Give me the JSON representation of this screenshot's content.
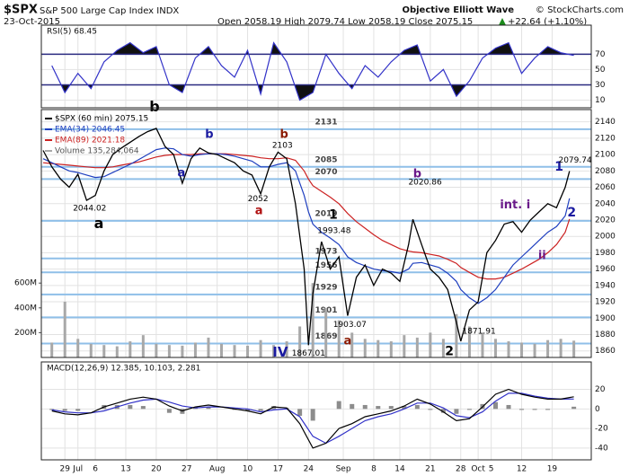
{
  "header": {
    "symbol": "$SPX",
    "name": "S&P 500 Large Cap Index INDX",
    "date": "23-Oct-2015",
    "quote": "Open 2058.19  High 2079.74  Low 2058.19  Close 2075.15",
    "change": "+22.64 (+1.10%)",
    "credit": "Objective Elliott Wave",
    "source": "© StockCharts.com"
  },
  "chart_data": [
    {
      "type": "line",
      "legend": "RSI(5) 68.45",
      "color": "#3232c8",
      "x": [
        -3,
        0,
        3,
        6,
        9,
        12,
        15,
        18,
        21,
        24,
        27,
        30,
        33,
        36,
        39,
        42,
        45,
        48,
        51,
        54,
        57,
        60,
        63,
        66,
        69,
        72,
        75,
        78,
        81,
        84,
        87,
        90,
        93,
        96,
        99,
        102,
        105,
        108,
        111,
        114,
        117
      ],
      "values": [
        55,
        20,
        45,
        25,
        60,
        75,
        85,
        72,
        80,
        30,
        20,
        65,
        80,
        55,
        40,
        75,
        18,
        85,
        60,
        10,
        20,
        70,
        45,
        25,
        55,
        40,
        60,
        75,
        82,
        35,
        50,
        15,
        35,
        65,
        78,
        85,
        45,
        65,
        80,
        72,
        68.45
      ],
      "xlim": [
        -5,
        121
      ],
      "ylim": [
        0,
        108
      ],
      "yticks": [
        10,
        30,
        50,
        70
      ],
      "bands": [
        30,
        70
      ]
    },
    {
      "type": "line",
      "x": [
        -5,
        -3,
        -1,
        1,
        3,
        5,
        7,
        9,
        11,
        13,
        15,
        17,
        19,
        21,
        23,
        25,
        27,
        29,
        31,
        33,
        35,
        37,
        39,
        41,
        43,
        45,
        47,
        49,
        51,
        53,
        55,
        56,
        57,
        59,
        61,
        63,
        65,
        67,
        69,
        71,
        73,
        75,
        77,
        79,
        80,
        82,
        84,
        86,
        88,
        90,
        91,
        93,
        95,
        97,
        99,
        101,
        103,
        105,
        107,
        109,
        111,
        113,
        115,
        116
      ],
      "series": [
        {
          "name": "Volume 135,284,064",
          "type": "bar",
          "axis": "y2",
          "color": "#a8a8a8",
          "x": [
            -3,
            0,
            3,
            6,
            9,
            12,
            15,
            18,
            21,
            24,
            27,
            30,
            33,
            36,
            39,
            42,
            45,
            48,
            51,
            54,
            57,
            60,
            63,
            66,
            69,
            72,
            75,
            78,
            81,
            84,
            87,
            90,
            93,
            96,
            99,
            102,
            105,
            108,
            111,
            114,
            117
          ],
          "values": [
            120000000,
            450000000,
            150000000,
            110000000,
            100000000,
            90000000,
            130000000,
            180000000,
            110000000,
            100000000,
            95000000,
            120000000,
            160000000,
            110000000,
            100000000,
            95000000,
            140000000,
            100000000,
            130000000,
            250000000,
            600000000,
            400000000,
            300000000,
            200000000,
            150000000,
            140000000,
            130000000,
            180000000,
            160000000,
            200000000,
            150000000,
            350000000,
            250000000,
            200000000,
            150000000,
            130000000,
            120000000,
            110000000,
            140000000,
            150000000,
            135284064
          ]
        },
        {
          "name": "EMA(89) 2021.18",
          "color": "#cc2222",
          "values": [
            2090,
            2089,
            2088,
            2087,
            2086,
            2085,
            2084,
            2084,
            2085,
            2087,
            2089,
            2091,
            2094,
            2097,
            2099,
            2100,
            2100,
            2100,
            2101,
            2101,
            2101,
            2101,
            2100,
            2099,
            2098,
            2096,
            2095,
            2095,
            2096,
            2093,
            2080,
            2070,
            2062,
            2055,
            2048,
            2040,
            2028,
            2018,
            2010,
            2002,
            1995,
            1990,
            1985,
            1982,
            1981,
            1980,
            1978,
            1976,
            1972,
            1967,
            1962,
            1956,
            1950,
            1948,
            1948,
            1950,
            1955,
            1960,
            1966,
            1972,
            1980,
            1990,
            2005,
            2021.18
          ]
        },
        {
          "name": "EMA(34) 2046.45",
          "color": "#1f3fbf",
          "values": [
            2095,
            2090,
            2085,
            2080,
            2078,
            2075,
            2072,
            2073,
            2078,
            2083,
            2088,
            2094,
            2100,
            2106,
            2108,
            2107,
            2100,
            2098,
            2100,
            2101,
            2101,
            2100,
            2098,
            2095,
            2092,
            2085,
            2085,
            2088,
            2090,
            2080,
            2050,
            2030,
            2015,
            2005,
            1998,
            1990,
            1975,
            1968,
            1964,
            1960,
            1958,
            1957,
            1955,
            1960,
            1967,
            1968,
            1965,
            1962,
            1955,
            1945,
            1935,
            1925,
            1918,
            1925,
            1935,
            1950,
            1965,
            1975,
            1985,
            1995,
            2005,
            2012,
            2025,
            2046.45
          ]
        },
        {
          "name": "$SPX (60 min) 2075.15",
          "color": "#000000",
          "values": [
            2105,
            2085,
            2070,
            2060,
            2076,
            2044,
            2050,
            2080,
            2100,
            2108,
            2115,
            2122,
            2128,
            2132,
            2110,
            2100,
            2065,
            2095,
            2108,
            2102,
            2100,
            2095,
            2090,
            2080,
            2075,
            2052,
            2085,
            2103,
            2095,
            2040,
            1960,
            1867.01,
            1930,
            1993.48,
            1960,
            1975,
            1903.07,
            1950,
            1965,
            1940,
            1960,
            1955,
            1945,
            1990,
            2020.86,
            1990,
            1960,
            1950,
            1935,
            1895,
            1871.91,
            1910,
            1920,
            1980,
            1995,
            2015,
            2018,
            2005,
            2020,
            2030,
            2040,
            2035,
            2060,
            2079.74
          ]
        }
      ],
      "xlim": [
        -5,
        121
      ],
      "ylim": [
        1852,
        2155
      ],
      "yticks": [
        1860,
        1880,
        1900,
        1920,
        1940,
        1960,
        1980,
        2000,
        2020,
        2040,
        2060,
        2080,
        2100,
        2120,
        2140
      ],
      "y2lim": [
        0,
        2000000000
      ],
      "y2ticks": [
        {
          "value": 200000000,
          "label": "200M"
        },
        {
          "value": 400000000,
          "label": "400M"
        },
        {
          "value": 600000000,
          "label": "600M"
        }
      ],
      "xticks": [
        {
          "value": 0,
          "label": "29"
        },
        {
          "value": 3,
          "label": "Jul"
        },
        {
          "value": 7,
          "label": "6"
        },
        {
          "value": 14,
          "label": "13"
        },
        {
          "value": 21,
          "label": "20"
        },
        {
          "value": 28,
          "label": "27"
        },
        {
          "value": 35,
          "label": "Aug"
        },
        {
          "value": 42,
          "label": "10"
        },
        {
          "value": 49,
          "label": "17"
        },
        {
          "value": 56,
          "label": "24"
        },
        {
          "value": 64,
          "label": "Sep"
        },
        {
          "value": 71,
          "label": "8"
        },
        {
          "value": 77,
          "label": "14"
        },
        {
          "value": 84,
          "label": "21"
        },
        {
          "value": 91,
          "label": "28"
        },
        {
          "value": 95,
          "label": "Oct"
        },
        {
          "value": 98,
          "label": "5"
        },
        {
          "value": 105,
          "label": "12"
        },
        {
          "value": 112,
          "label": "19"
        }
      ],
      "levels": [
        2131,
        2085,
        2070,
        2019,
        1973,
        1956,
        1929,
        1901,
        1869
      ],
      "level_color": "#8fbfe8",
      "annotations": [
        {
          "text": "b",
          "color": "#000000"
        },
        {
          "text": "a",
          "color": "#000000"
        },
        {
          "text": "2044.02",
          "color": "#000000"
        },
        {
          "text": "a",
          "color": "#1a1aa0"
        },
        {
          "text": "b",
          "color": "#1a1aa0"
        },
        {
          "text": "2052",
          "color": "#000000"
        },
        {
          "text": "a",
          "color": "#b01010"
        },
        {
          "text": "b",
          "color": "#8b1a00"
        },
        {
          "text": "2103",
          "color": "#000000"
        },
        {
          "text": "1",
          "color": "#000000"
        },
        {
          "text": "1993.48",
          "color": "#000000"
        },
        {
          "text": "1867.01",
          "color": "#000000"
        },
        {
          "text": "IV",
          "color": "#1a1aa0"
        },
        {
          "text": "1903.07",
          "color": "#000000"
        },
        {
          "text": "a",
          "color": "#8b1a00"
        },
        {
          "text": "b",
          "color": "#6a1a8a"
        },
        {
          "text": "2020.86",
          "color": "#000000"
        },
        {
          "text": "2",
          "color": "#000000"
        },
        {
          "text": "1871.91",
          "color": "#000000"
        },
        {
          "text": "int. i",
          "color": "#6a1a8a"
        },
        {
          "text": "ii",
          "color": "#6a1a8a"
        },
        {
          "text": "1",
          "color": "#1a1aa0"
        },
        {
          "text": "2",
          "color": "#1a1aa0"
        },
        {
          "text": "2079.74",
          "color": "#000000"
        }
      ]
    },
    {
      "type": "line",
      "legend": "MACD(12,26,9) 12.385, 10.103, 2.281",
      "x": [
        -3,
        0,
        3,
        6,
        9,
        12,
        15,
        18,
        21,
        24,
        27,
        30,
        33,
        36,
        39,
        42,
        45,
        48,
        51,
        54,
        57,
        60,
        63,
        66,
        69,
        72,
        75,
        78,
        81,
        84,
        87,
        90,
        93,
        96,
        99,
        102,
        105,
        108,
        111,
        114,
        117
      ],
      "series": [
        {
          "type": "bar",
          "color": "#8c8c8c",
          "values": [
            -1,
            -2,
            -2,
            0,
            4,
            4,
            4,
            3,
            0,
            -4,
            -5,
            1,
            2,
            0,
            -1,
            -2,
            -2,
            3,
            1,
            -7,
            -12,
            0,
            8,
            5,
            4,
            3,
            3,
            3,
            4,
            -1,
            -4,
            -5,
            -1,
            5,
            7,
            4,
            -1,
            -1,
            -1,
            0,
            2.281
          ]
        },
        {
          "color": "#3232c8",
          "values": [
            -1,
            -3,
            -4,
            -4,
            -2,
            2,
            6,
            9,
            10,
            7,
            3,
            1,
            2,
            2,
            1,
            0,
            -3,
            -1,
            0,
            -8,
            -28,
            -35,
            -28,
            -20,
            -12,
            -8,
            -5,
            0,
            6,
            6,
            1,
            -7,
            -9,
            -3,
            8,
            16,
            16,
            13,
            11,
            10,
            10.103
          ]
        },
        {
          "color": "#000000",
          "values": [
            -2,
            -5,
            -6,
            -4,
            2,
            6,
            10,
            12,
            10,
            3,
            -2,
            2,
            4,
            2,
            0,
            -2,
            -5,
            2,
            1,
            -15,
            -40,
            -35,
            -20,
            -15,
            -8,
            -5,
            -2,
            3,
            10,
            5,
            -3,
            -12,
            -10,
            2,
            15,
            20,
            15,
            12,
            10,
            10,
            12.385
          ]
        }
      ],
      "xlim": [
        -5,
        121
      ],
      "ylim": [
        -52,
        48
      ],
      "yticks": [
        -40,
        -20,
        0,
        20
      ],
      "xticks": [
        {
          "value": 0,
          "label": "29"
        },
        {
          "value": 3,
          "label": "Jul"
        },
        {
          "value": 7,
          "label": "6"
        },
        {
          "value": 14,
          "label": "13"
        },
        {
          "value": 21,
          "label": "20"
        },
        {
          "value": 28,
          "label": "27"
        },
        {
          "value": 35,
          "label": "Aug"
        },
        {
          "value": 42,
          "label": "10"
        },
        {
          "value": 49,
          "label": "17"
        },
        {
          "value": 56,
          "label": "24"
        },
        {
          "value": 64,
          "label": "Sep"
        },
        {
          "value": 71,
          "label": "8"
        },
        {
          "value": 77,
          "label": "14"
        },
        {
          "value": 84,
          "label": "21"
        },
        {
          "value": 91,
          "label": "28"
        },
        {
          "value": 95,
          "label": "Oct"
        },
        {
          "value": 98,
          "label": "5"
        },
        {
          "value": 105,
          "label": "12"
        },
        {
          "value": 112,
          "label": "19"
        }
      ]
    }
  ]
}
